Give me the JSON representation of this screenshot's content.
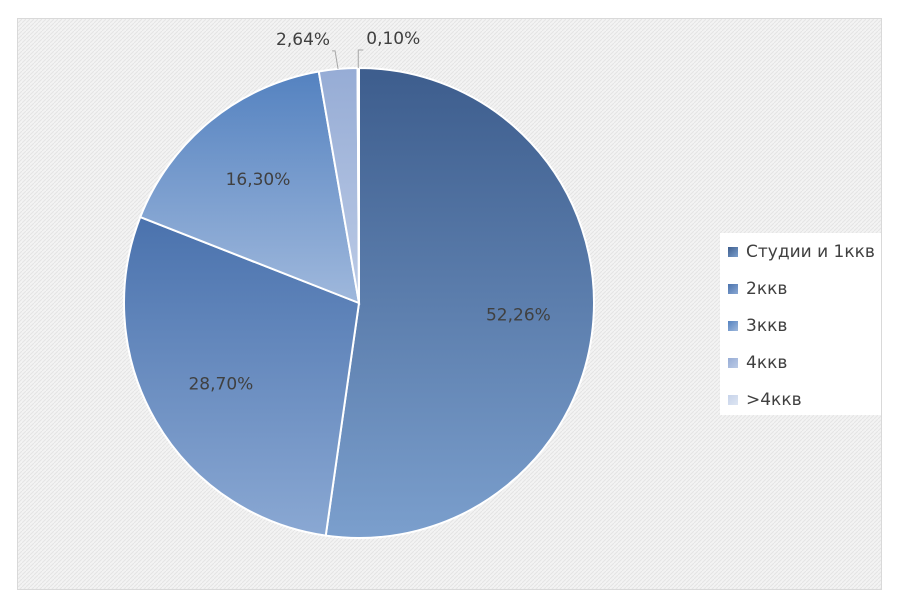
{
  "chart_data": {
    "type": "pie",
    "categories": [
      "Студии и 1ккв",
      "2ккв",
      "3ккв",
      "4ккв",
      ">4ккв"
    ],
    "values": [
      52.26,
      28.7,
      16.3,
      2.64,
      0.1
    ],
    "data_labels": [
      "52,26%",
      "28,70%",
      "16,30%",
      "2,64%",
      "0,10%"
    ],
    "legend_position": "right",
    "start_angle": "12 o'clock",
    "direction": "clockwise",
    "colors": [
      {
        "light": "#7b9fcd",
        "dark": "#3d5d8d"
      },
      {
        "light": "#8aa8d3",
        "dark": "#4a72ad"
      },
      {
        "light": "#9fb8dc",
        "dark": "#5482c0"
      },
      {
        "light": "#bccbe6",
        "dark": "#96acd5"
      },
      {
        "light": "#dde5f2",
        "dark": "#c7d3ea"
      }
    ],
    "background_color": "#efefef"
  }
}
